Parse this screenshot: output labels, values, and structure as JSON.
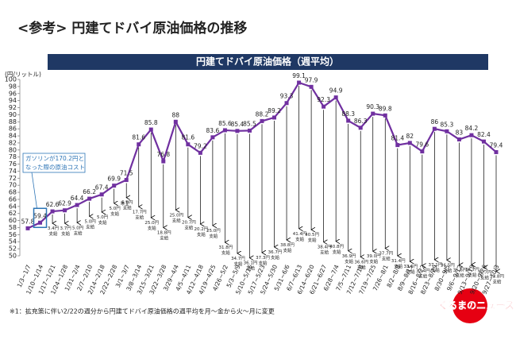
{
  "chart_data": {
    "type": "line",
    "page_title": "<参考> 円建てドバイ原油価格の推移",
    "title": "円建てドバイ原油価格（週平均）",
    "y_label": "(円/リットル)",
    "footnote": "※1：拡充策に伴い2/22の週分から円建てドバイ原油価格の週平均を月～金から火～月に変更",
    "annotation": {
      "lines": [
        "ガソリンが170.2円と",
        "なった際の原油コスト"
      ],
      "color": "#2e75b6"
    },
    "note_mark": "※1",
    "logo": "くるまのニュース",
    "categories": [
      "1/3~1/7",
      "1/10~1/14",
      "1/17~1/21",
      "1/24~1/28",
      "1/31~2/4",
      "2/7~2/10",
      "2/14~2/18",
      "2/22~2/28",
      "3/1~3/7",
      "3/8~3/14",
      "3/15~3/21",
      "3/22~3/28",
      "3/29~4/4",
      "4/5~4/11",
      "4/12~4/18",
      "4/19~4/25",
      "4/26~5/2",
      "5/3~5/9",
      "5/10~5/16",
      "5/17~5/23",
      "5/24~5/30",
      "5/31~6/6",
      "6/7~6/13",
      "6/14~6/20",
      "6/21~6/27",
      "6/28~7/4",
      "7/5~7/11",
      "7/12~7/18",
      "7/19~7/25",
      "7/26~8/1",
      "8/2~8/8",
      "8/9~8/15",
      "8/16~8/22",
      "8/23~8/29",
      "8/30~9/5",
      "9/6~9/12",
      "9/13~9/19",
      "9/20~9/26",
      "9/27~10/3"
    ],
    "series": [
      {
        "name": "円建てドバイ原油価格",
        "color": "#7030a0",
        "values": [
          57.8,
          59.4,
          62.6,
          62.9,
          64.4,
          66.2,
          67.4,
          69.9,
          71.5,
          81.6,
          85.8,
          76.8,
          88.0,
          81.6,
          79.2,
          83.6,
          85.6,
          85.4,
          85.5,
          88.2,
          89.2,
          93.3,
          99.1,
          97.9,
          92.3,
          94.9,
          88.3,
          86.3,
          90.3,
          89.8,
          81.4,
          82.0,
          79.6,
          86.0,
          85.3,
          83.0,
          84.2,
          82.4,
          79.4
        ]
      },
      {
        "name": "支給",
        "color": "#000000",
        "values": [
          null,
          null,
          3.4,
          3.7,
          5.0,
          5.0,
          5.0,
          5.0,
          5.0,
          17.7,
          25.0,
          18.8,
          25.0,
          20.7,
          20.2,
          25.0,
          31.8,
          34.7,
          36.1,
          37.3,
          36.7,
          38.8,
          41.4,
          40.5,
          38.4,
          40.8,
          36.9,
          36.6,
          39.0,
          37.7,
          31.4,
          33.6,
          32.4,
          37.1,
          36.5,
          35.6,
          36.7,
          35.7,
          33.8
        ],
        "value_labels": [
          null,
          null,
          "3.4円 支給",
          "3.7円 支給",
          "5.0円 支給",
          "5.0円 支給",
          "5.0円 支給",
          "5.0円 支給",
          "5.0円 支給",
          "17.7円 支給",
          "25.0円 支給",
          "18.8円 支給",
          "25.0円 支給",
          "20.7円 支給",
          "20.2円 支給",
          "25.0円 支給",
          "31.8円 支給",
          "34.7円 支給",
          "36.1円 支給",
          "37.3円 支給",
          "36.7円 支給",
          "38.8円 支給",
          "41.4円 支給",
          "40.5円 支給",
          "38.4円 支給",
          "40.8円 支給",
          "36.9円 支給",
          "36.6円 支給",
          "39.0円 支給",
          "37.7円 支給",
          "31.4円 支給",
          "33.6円 支給",
          "32.4円 支給",
          "37.1円 支給",
          "36.5円 支給",
          "35.6円 支給",
          "36.7円 支給",
          "35.7円 支給",
          "33.8円 支給"
        ]
      }
    ],
    "ylim": [
      50,
      100
    ],
    "yticks": [
      50,
      52,
      54,
      56,
      58,
      60,
      62,
      64,
      66,
      68,
      70,
      72,
      74,
      76,
      78,
      80,
      82,
      84,
      86,
      88,
      90,
      92,
      94,
      96,
      98,
      100
    ],
    "header_color": "#1f3864"
  }
}
